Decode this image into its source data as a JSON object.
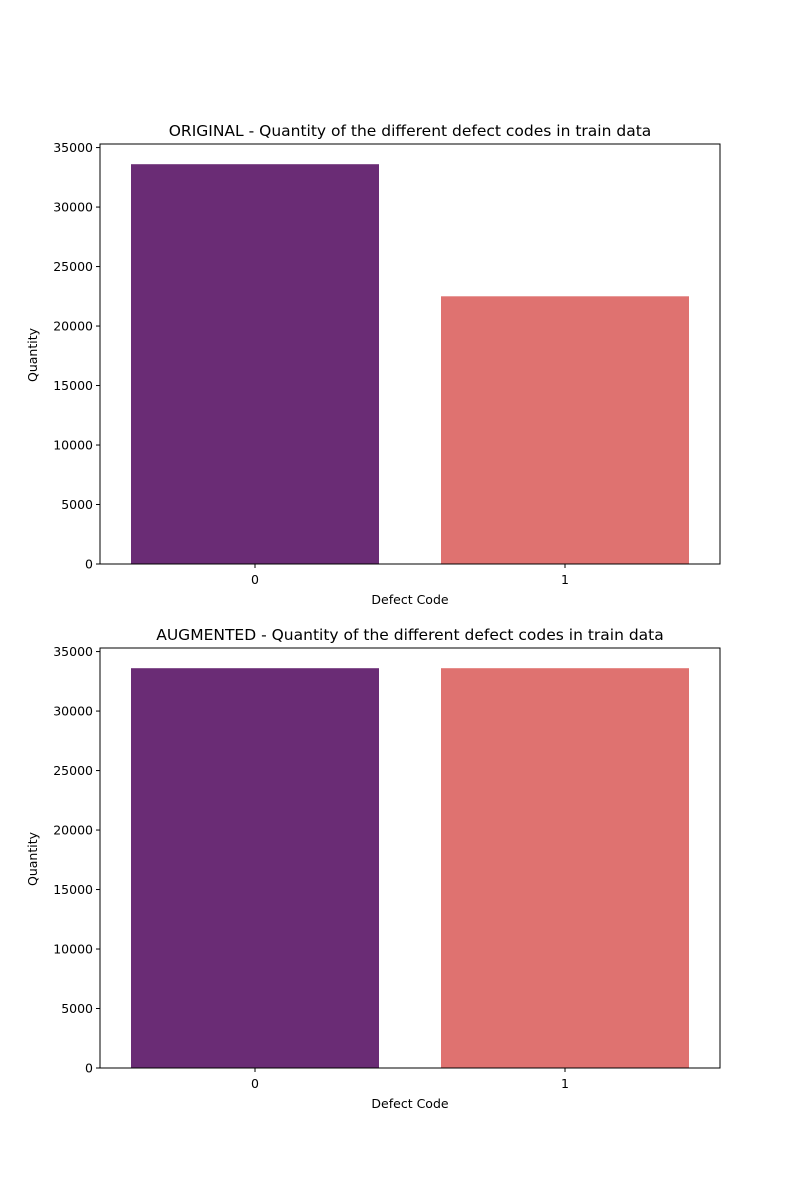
{
  "colors": {
    "bar_0": "#6a2c75",
    "bar_1": "#df7270"
  },
  "chart_data": [
    {
      "type": "bar",
      "title": "ORIGINAL - Quantity of the different defect codes in train data",
      "xlabel": "Defect Code",
      "ylabel": "Quantity",
      "categories": [
        "0",
        "1"
      ],
      "values": [
        33600,
        22500
      ],
      "ylim": [
        0,
        35000
      ],
      "yticks": [
        0,
        5000,
        10000,
        15000,
        20000,
        25000,
        30000,
        35000
      ],
      "grid": false,
      "legend": "none"
    },
    {
      "type": "bar",
      "title": "AUGMENTED - Quantity of the different defect codes in train data",
      "xlabel": "Defect Code",
      "ylabel": "Quantity",
      "categories": [
        "0",
        "1"
      ],
      "values": [
        33600,
        33600
      ],
      "ylim": [
        0,
        35000
      ],
      "yticks": [
        0,
        5000,
        10000,
        15000,
        20000,
        25000,
        30000,
        35000
      ],
      "grid": false,
      "legend": "none"
    }
  ]
}
